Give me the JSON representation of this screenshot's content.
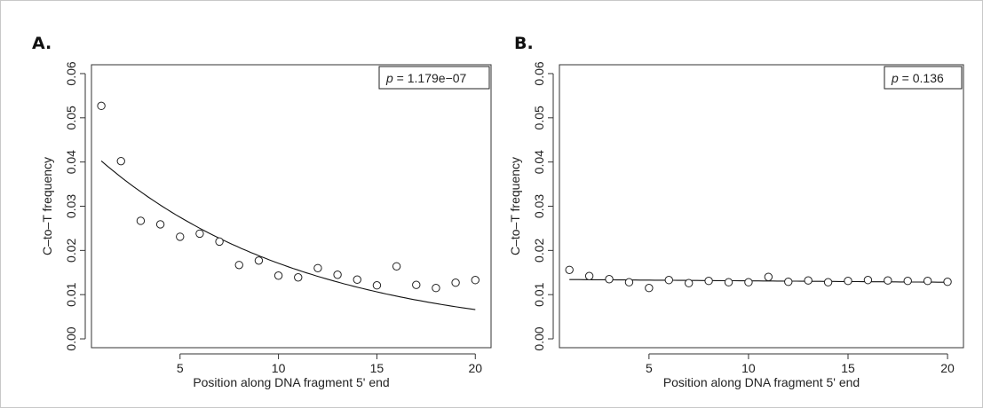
{
  "chart_data": [
    {
      "panel_label": "A.",
      "type": "scatter",
      "xlabel": "Position along DNA fragment 5' end",
      "ylabel": "C–to–T frequency",
      "xlim": [
        0.5,
        20.8
      ],
      "ylim": [
        -0.002,
        0.062
      ],
      "xticks": [
        5,
        10,
        15,
        20
      ],
      "yticks": [
        0.0,
        0.01,
        0.02,
        0.03,
        0.04,
        0.05,
        0.06
      ],
      "ytick_labels": [
        "0.00",
        "0.01",
        "0.02",
        "0.03",
        "0.04",
        "0.05",
        "0.06"
      ],
      "pvalue": {
        "var": "p",
        "text": " = 1.179e−07"
      },
      "legend_position": "top-right",
      "grid": false,
      "x": [
        1,
        2,
        3,
        4,
        5,
        6,
        7,
        8,
        9,
        10,
        11,
        12,
        13,
        14,
        15,
        16,
        17,
        18,
        19,
        20
      ],
      "y": [
        0.0527,
        0.0402,
        0.0267,
        0.0259,
        0.0231,
        0.0238,
        0.022,
        0.0167,
        0.0177,
        0.0143,
        0.0139,
        0.016,
        0.0145,
        0.0134,
        0.0121,
        0.0164,
        0.0122,
        0.0115,
        0.0127,
        0.0133
      ],
      "fit": {
        "type": "exponential",
        "a": 0.04426,
        "b": -0.0951
      }
    },
    {
      "panel_label": "B.",
      "type": "scatter",
      "xlabel": "Position along DNA fragment 5' end",
      "ylabel": "C–to–T frequency",
      "xlim": [
        0.5,
        20.8
      ],
      "ylim": [
        -0.002,
        0.062
      ],
      "xticks": [
        5,
        10,
        15,
        20
      ],
      "yticks": [
        0.0,
        0.01,
        0.02,
        0.03,
        0.04,
        0.05,
        0.06
      ],
      "ytick_labels": [
        "0.00",
        "0.01",
        "0.02",
        "0.03",
        "0.04",
        "0.05",
        "0.06"
      ],
      "pvalue": {
        "var": "p",
        "text": " = 0.136"
      },
      "legend_position": "top-right",
      "grid": false,
      "x": [
        1,
        2,
        3,
        4,
        5,
        6,
        7,
        8,
        9,
        10,
        11,
        12,
        13,
        14,
        15,
        16,
        17,
        18,
        19,
        20
      ],
      "y": [
        0.0156,
        0.0142,
        0.0135,
        0.0128,
        0.0115,
        0.0133,
        0.0126,
        0.0131,
        0.0128,
        0.0128,
        0.014,
        0.0129,
        0.0132,
        0.0128,
        0.0131,
        0.0133,
        0.0132,
        0.0131,
        0.0131,
        0.0129
      ],
      "fit": {
        "type": "exponential",
        "a": 0.01345,
        "b": -0.0025
      }
    }
  ]
}
